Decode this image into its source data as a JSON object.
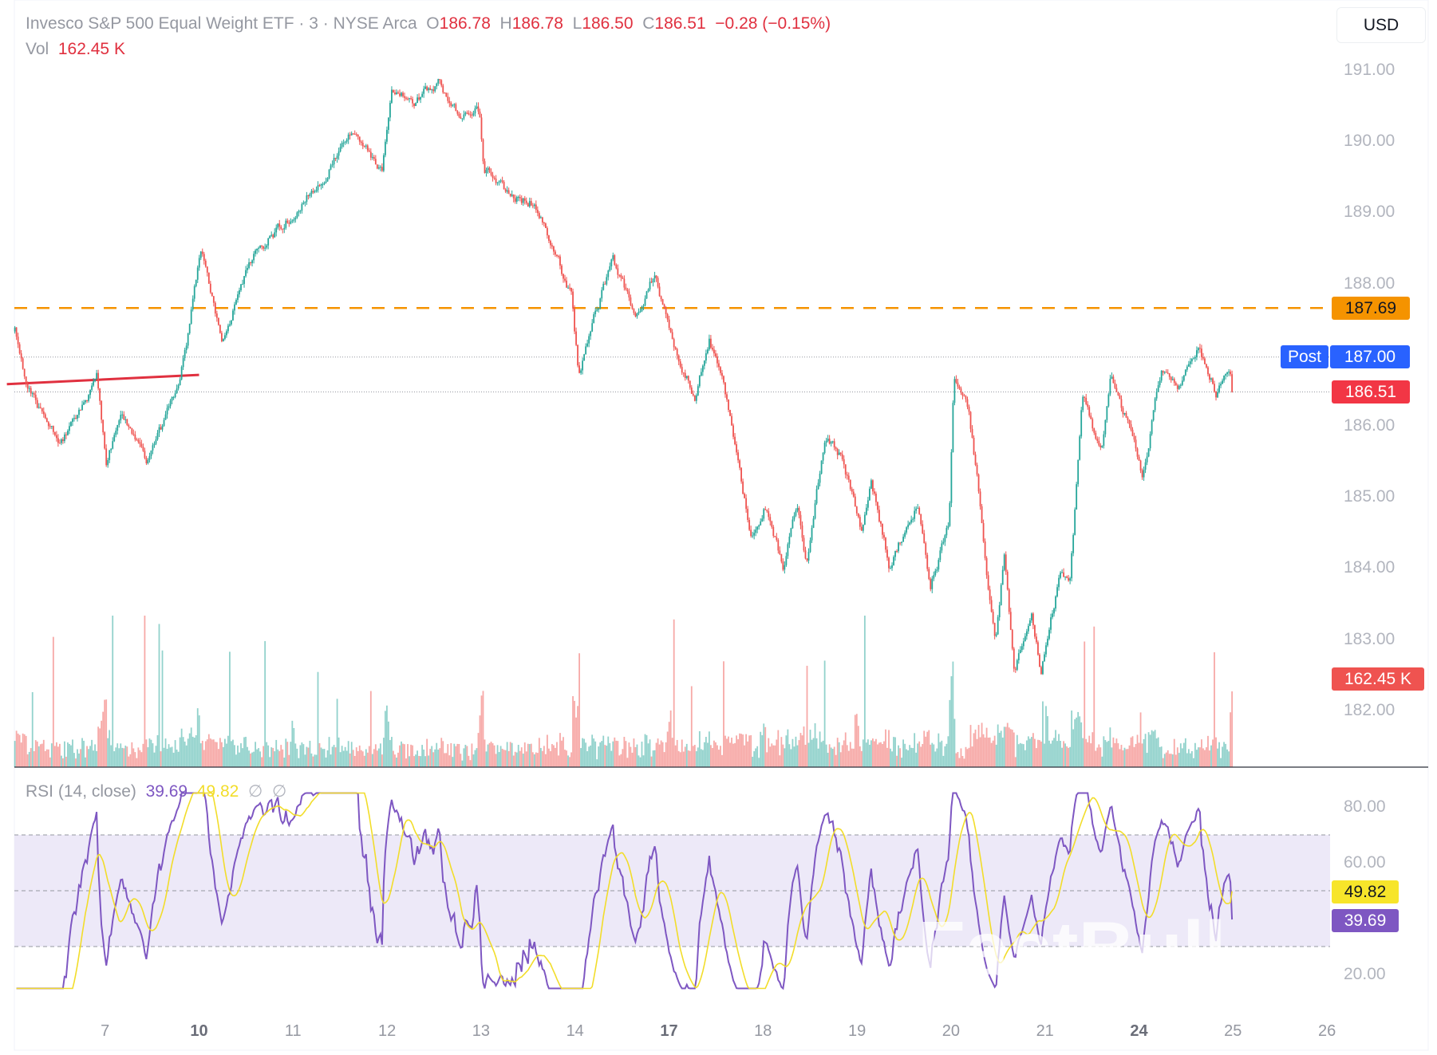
{
  "header": {
    "symbol_title": "Invesco S&P 500 Equal Weight ETF · 3 · NYSE Arca",
    "open_label": "O",
    "open": "186.78",
    "high_label": "H",
    "high": "186.78",
    "low_label": "L",
    "low": "186.50",
    "close_label": "C",
    "close": "186.51",
    "change": "−0.28 (−0.15%)",
    "vol_label": "Vol",
    "vol": "162.45 K"
  },
  "currency_button": "USD",
  "rsi_header": {
    "label": "RSI (14, close)",
    "rsi": "39.69",
    "ma": "49.82",
    "icon1": "∅",
    "icon2": "∅"
  },
  "tags": {
    "alert_price": "187.69",
    "post_label": "Post",
    "post_price": "187.00",
    "last_price": "186.51",
    "volume": "162.45 K",
    "rsi_ma": "49.82",
    "rsi": "39.69"
  },
  "watermark": "FastBull",
  "colors": {
    "up": "#26a69a",
    "down": "#ef5350",
    "alert_line": "#f59300",
    "post": "#2962ff",
    "last": "#f23645",
    "trendline": "#e0303f",
    "rsi": "#7e57c2",
    "rsi_ma": "#f2dd2a",
    "rsi_band": "#ede9f8"
  },
  "chart_data": [
    {
      "type": "candlestick",
      "interval": "3",
      "y_axis": {
        "ticks": [
          "191.00",
          "190.00",
          "189.00",
          "188.00",
          "186.00",
          "185.00",
          "184.00",
          "183.00",
          "182.00"
        ],
        "range": [
          181.8,
          191.15
        ]
      },
      "x_axis": {
        "ticks": [
          {
            "label": "7",
            "bold": false
          },
          {
            "label": "10",
            "bold": true
          },
          {
            "label": "11",
            "bold": false
          },
          {
            "label": "12",
            "bold": false
          },
          {
            "label": "13",
            "bold": false
          },
          {
            "label": "14",
            "bold": false
          },
          {
            "label": "17",
            "bold": true
          },
          {
            "label": "18",
            "bold": false
          },
          {
            "label": "19",
            "bold": false
          },
          {
            "label": "20",
            "bold": false
          },
          {
            "label": "21",
            "bold": false
          },
          {
            "label": "24",
            "bold": true
          },
          {
            "label": "25",
            "bold": false
          },
          {
            "label": "26",
            "bold": false
          }
        ]
      },
      "day_sequence": [
        "4",
        "7",
        "10",
        "11",
        "12",
        "13",
        "14",
        "17",
        "18",
        "19",
        "20",
        "21",
        "24",
        "25",
        "26"
      ],
      "price_path": [
        {
          "day": "4",
          "at": 0.04,
          "price": 187.36
        },
        {
          "day": "4",
          "at": 0.18,
          "price": 186.58
        },
        {
          "day": "4",
          "at": 0.52,
          "price": 185.73
        },
        {
          "day": "4",
          "at": 0.91,
          "price": 186.71
        },
        {
          "day": "7",
          "at": 0.01,
          "price": 185.47
        },
        {
          "day": "7",
          "at": 0.16,
          "price": 186.25
        },
        {
          "day": "7",
          "at": 0.45,
          "price": 185.54
        },
        {
          "day": "7",
          "at": 0.75,
          "price": 186.45
        },
        {
          "day": "7",
          "at": 0.89,
          "price": 187.36
        },
        {
          "day": "10",
          "at": 0.02,
          "price": 188.52
        },
        {
          "day": "10",
          "at": 0.24,
          "price": 187.16
        },
        {
          "day": "10",
          "at": 0.53,
          "price": 188.33
        },
        {
          "day": "10",
          "at": 0.82,
          "price": 188.78
        },
        {
          "day": "11",
          "at": 0.12,
          "price": 189.17
        },
        {
          "day": "11",
          "at": 0.61,
          "price": 190.08
        },
        {
          "day": "11",
          "at": 0.95,
          "price": 189.69
        },
        {
          "day": "12",
          "at": 0.05,
          "price": 190.86
        },
        {
          "day": "12",
          "at": 0.29,
          "price": 190.6
        },
        {
          "day": "12",
          "at": 0.54,
          "price": 190.86
        },
        {
          "day": "12",
          "at": 0.78,
          "price": 190.4
        },
        {
          "day": "12",
          "at": 0.98,
          "price": 190.47
        },
        {
          "day": "13",
          "at": 0.03,
          "price": 189.69
        },
        {
          "day": "13",
          "at": 0.27,
          "price": 189.3
        },
        {
          "day": "13",
          "at": 0.57,
          "price": 189.17
        },
        {
          "day": "13",
          "at": 0.77,
          "price": 188.52
        },
        {
          "day": "13",
          "at": 0.96,
          "price": 187.87
        },
        {
          "day": "14",
          "at": 0.04,
          "price": 186.71
        },
        {
          "day": "14",
          "at": 0.21,
          "price": 187.61
        },
        {
          "day": "14",
          "at": 0.4,
          "price": 188.33
        },
        {
          "day": "14",
          "at": 0.65,
          "price": 187.55
        },
        {
          "day": "14",
          "at": 0.84,
          "price": 188.13
        },
        {
          "day": "17",
          "at": 0.04,
          "price": 187.23
        },
        {
          "day": "17",
          "at": 0.28,
          "price": 186.45
        },
        {
          "day": "17",
          "at": 0.43,
          "price": 187.23
        },
        {
          "day": "17",
          "at": 0.63,
          "price": 186.32
        },
        {
          "day": "17",
          "at": 0.87,
          "price": 184.5
        },
        {
          "day": "18",
          "at": 0.02,
          "price": 184.96
        },
        {
          "day": "18",
          "at": 0.22,
          "price": 183.98
        },
        {
          "day": "18",
          "at": 0.36,
          "price": 184.96
        },
        {
          "day": "18",
          "at": 0.46,
          "price": 184.11
        },
        {
          "day": "18",
          "at": 0.66,
          "price": 185.93
        },
        {
          "day": "18",
          "at": 0.85,
          "price": 185.54
        },
        {
          "day": "19",
          "at": 0.05,
          "price": 184.5
        },
        {
          "day": "19",
          "at": 0.15,
          "price": 185.28
        },
        {
          "day": "19",
          "at": 0.34,
          "price": 184.11
        },
        {
          "day": "19",
          "at": 0.64,
          "price": 184.89
        },
        {
          "day": "19",
          "at": 0.78,
          "price": 183.79
        },
        {
          "day": "19",
          "at": 0.98,
          "price": 184.63
        },
        {
          "day": "20",
          "at": 0.03,
          "price": 186.71
        },
        {
          "day": "20",
          "at": 0.18,
          "price": 186.32
        },
        {
          "day": "20",
          "at": 0.28,
          "price": 185.28
        },
        {
          "day": "20",
          "at": 0.47,
          "price": 182.95
        },
        {
          "day": "20",
          "at": 0.57,
          "price": 184.24
        },
        {
          "day": "20",
          "at": 0.67,
          "price": 182.56
        },
        {
          "day": "20",
          "at": 0.86,
          "price": 183.33
        },
        {
          "day": "20",
          "at": 0.96,
          "price": 182.56
        },
        {
          "day": "21",
          "at": 0.16,
          "price": 183.98
        },
        {
          "day": "21",
          "at": 0.26,
          "price": 183.72
        },
        {
          "day": "21",
          "at": 0.4,
          "price": 186.45
        },
        {
          "day": "21",
          "at": 0.6,
          "price": 185.67
        },
        {
          "day": "21",
          "at": 0.7,
          "price": 186.71
        },
        {
          "day": "21",
          "at": 0.89,
          "price": 186.06
        },
        {
          "day": "24",
          "at": 0.04,
          "price": 185.35
        },
        {
          "day": "24",
          "at": 0.24,
          "price": 186.84
        },
        {
          "day": "24",
          "at": 0.43,
          "price": 186.58
        },
        {
          "day": "24",
          "at": 0.63,
          "price": 187.1
        },
        {
          "day": "24",
          "at": 0.82,
          "price": 186.51
        },
        {
          "day": "24",
          "at": 0.97,
          "price": 186.84
        },
        {
          "day": "24",
          "at": 0.99,
          "price": 186.51
        }
      ],
      "trendline": [
        {
          "day": "4",
          "at": 0.04,
          "price": 186.62
        },
        {
          "day": "10",
          "at": 0.0,
          "price": 186.75
        }
      ],
      "horizontal_lines": [
        {
          "price": 187.69,
          "style": "dashed",
          "color": "#f59300"
        },
        {
          "price": 187.0,
          "style": "dotted",
          "color": "#9598a1"
        },
        {
          "price": 186.51,
          "style": "dotted",
          "color": "#9598a1"
        }
      ],
      "last_volume_k": 162.45
    },
    {
      "type": "line",
      "title": "RSI (14, close)",
      "y_axis": {
        "ticks": [
          "80.00",
          "60.00",
          "20.00"
        ],
        "range": [
          20,
          80
        ]
      },
      "band": [
        30,
        70
      ],
      "middle": 50,
      "last_rsi": 39.69,
      "last_ma": 49.82
    }
  ]
}
